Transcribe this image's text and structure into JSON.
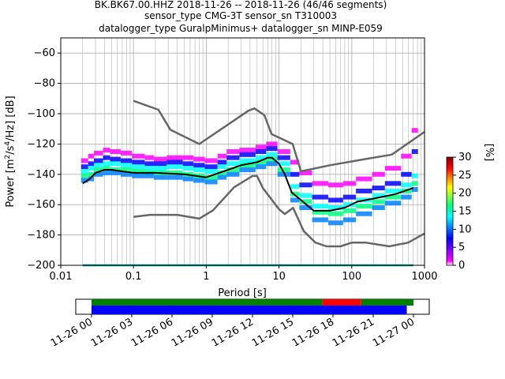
{
  "title": {
    "line1": "BK.BK67.00.HHZ   2018-11-26 -- 2018-11-26  (46/46 segments)",
    "line2": "sensor_type CMG-3T sensor_sn T310003",
    "line3": "datalogger_type GuralpMinimus+ datalogger_sn MINP-E059"
  },
  "chart_data": {
    "type": "heatmap",
    "title": "BK.BK67.00.HHZ   2018-11-26 -- 2018-11-26  (46/46 segments)",
    "xlabel": "Period [s]",
    "ylabel": "Power [m²/s⁴/Hz] [dB]",
    "ylabel_text": "Power [m",
    "ylabel_sup1": "2",
    "ylabel_mid": "/s",
    "ylabel_sup2": "4",
    "ylabel_end": "/Hz] [dB]",
    "x_scale": "log",
    "xlim": [
      0.01,
      1000
    ],
    "ylim": [
      -200,
      -50
    ],
    "x_ticks": [
      0.01,
      0.1,
      1,
      10,
      100,
      1000
    ],
    "x_tick_labels": [
      "0.01",
      "0.1",
      "1",
      "10",
      "100",
      "1000"
    ],
    "y_ticks": [
      -200,
      -180,
      -160,
      -140,
      -120,
      -100,
      -80,
      -60
    ],
    "y_tick_labels": [
      "−200",
      "−180",
      "−160",
      "−140",
      "−120",
      "−100",
      "−80",
      "−60"
    ],
    "grid": true,
    "colorbar": {
      "label": "[%]",
      "range": [
        0,
        30
      ],
      "ticks": [
        0,
        5,
        10,
        15,
        20,
        25,
        30
      ],
      "colormap": [
        "#ffffff",
        "#ff00ff",
        "#0000ff",
        "#00ffff",
        "#00ff00",
        "#ffff00",
        "#ff0000",
        "#800000"
      ]
    },
    "series": [
      {
        "name": "mean",
        "color": "#000000",
        "x": [
          0.02,
          0.025,
          0.03,
          0.04,
          0.05,
          0.07,
          0.1,
          0.2,
          0.5,
          1,
          2,
          3,
          5,
          7,
          8,
          10,
          12,
          15,
          20,
          30,
          50,
          80,
          120,
          200,
          400,
          700
        ],
        "y": [
          -146,
          -143,
          -139,
          -137,
          -137,
          -138,
          -139,
          -139,
          -140,
          -142,
          -137,
          -134,
          -132,
          -129,
          -129,
          -133,
          -140,
          -152,
          -157,
          -164,
          -164,
          -162,
          -158,
          -156,
          -153,
          -149
        ]
      },
      {
        "name": "noise model high",
        "color": "#666666",
        "x": [
          0.1,
          0.22,
          0.32,
          0.8,
          3.8,
          4.6,
          6.3,
          7.9,
          15.4,
          20
        ],
        "y": [
          -91.5,
          -97.4,
          -110.5,
          -120,
          -98,
          -96.5,
          -101,
          -113.5,
          -120,
          -138
        ]
      },
      {
        "name": "noise model high long period",
        "color": "#666666",
        "x": [
          20,
          50,
          150,
          354.8,
          1000
        ],
        "y": [
          -138,
          -134,
          -130,
          -127,
          -112
        ]
      },
      {
        "name": "noise model low",
        "color": "#666666",
        "x": [
          0.1,
          0.17,
          0.4,
          0.8,
          1.24,
          2.4,
          4.3,
          5,
          6,
          10,
          12,
          15.6,
          21.9,
          31.6,
          45,
          70,
          101,
          154,
          328,
          600,
          1000
        ],
        "y": [
          -168,
          -166.7,
          -166.7,
          -169.2,
          -163.7,
          -148.6,
          -141.1,
          -141.1,
          -149,
          -163,
          -166.2,
          -162.1,
          -177.5,
          -185,
          -187.5,
          -187.5,
          -185,
          -185,
          -187.5,
          -185,
          -179
        ]
      },
      {
        "name": "floor",
        "color": "#00a0a0",
        "x": [
          0.02,
          700
        ],
        "y": [
          -200,
          -200
        ]
      }
    ],
    "psd_cells": [
      {
        "x": 0.02,
        "y": [
          -131,
          -135,
          -138,
          -141,
          -144
        ]
      },
      {
        "x": 0.025,
        "y": [
          -128,
          -133,
          -136,
          -140,
          -143
        ]
      },
      {
        "x": 0.03,
        "y": [
          -126,
          -131,
          -134,
          -137,
          -140
        ]
      },
      {
        "x": 0.04,
        "y": [
          -124,
          -129,
          -133,
          -136,
          -139
        ]
      },
      {
        "x": 0.05,
        "y": [
          -125,
          -130,
          -133,
          -137,
          -139
        ]
      },
      {
        "x": 0.07,
        "y": [
          -126,
          -131,
          -134,
          -137,
          -140
        ]
      },
      {
        "x": 0.1,
        "y": [
          -128,
          -132,
          -135,
          -138,
          -141
        ]
      },
      {
        "x": 0.15,
        "y": [
          -129,
          -133,
          -136,
          -139,
          -141
        ]
      },
      {
        "x": 0.2,
        "y": [
          -130,
          -133,
          -136,
          -139,
          -142
        ]
      },
      {
        "x": 0.3,
        "y": [
          -129,
          -132,
          -135,
          -139,
          -142
        ]
      },
      {
        "x": 0.5,
        "y": [
          -129,
          -133,
          -136,
          -140,
          -143
        ]
      },
      {
        "x": 0.7,
        "y": [
          -130,
          -134,
          -137,
          -141,
          -144
        ]
      },
      {
        "x": 1,
        "y": [
          -131,
          -135,
          -138,
          -142,
          -145
        ]
      },
      {
        "x": 1.5,
        "y": [
          -128,
          -132,
          -135,
          -139,
          -142
        ]
      },
      {
        "x": 2,
        "y": [
          -125,
          -129,
          -133,
          -137,
          -140
        ]
      },
      {
        "x": 3,
        "y": [
          -124,
          -127,
          -131,
          -134,
          -137
        ]
      },
      {
        "x": 5,
        "y": [
          -122,
          -125,
          -129,
          -132,
          -135
        ]
      },
      {
        "x": 7,
        "y": [
          -120,
          -123,
          -127,
          -130,
          -133
        ]
      },
      {
        "x": 10,
        "y": [
          -125,
          -129,
          -133,
          -137,
          -140
        ]
      },
      {
        "x": 15,
        "y": [
          -132,
          -140,
          -148,
          -153,
          -157
        ]
      },
      {
        "x": 20,
        "y": [
          -139,
          -147,
          -154,
          -158,
          -162
        ]
      },
      {
        "x": 30,
        "y": [
          -146,
          -155,
          -161,
          -165,
          -170
        ]
      },
      {
        "x": 50,
        "y": [
          -147,
          -157,
          -162,
          -166,
          -172
        ]
      },
      {
        "x": 80,
        "y": [
          -146,
          -155,
          -160,
          -164,
          -170
        ]
      },
      {
        "x": 120,
        "y": [
          -143,
          -151,
          -157,
          -161,
          -166
        ]
      },
      {
        "x": 200,
        "y": [
          -140,
          -149,
          -154,
          -158,
          -162
        ]
      },
      {
        "x": 300,
        "y": [
          -136,
          -146,
          -151,
          -155,
          -159
        ]
      },
      {
        "x": 500,
        "y": [
          -128,
          -140,
          -147,
          -151,
          -155
        ]
      },
      {
        "x": 700,
        "y": [
          -111,
          -125,
          -141,
          -146,
          -150
        ]
      }
    ],
    "timeline": {
      "tick_labels": [
        "11-26 00",
        "11-26 03",
        "11-26 06",
        "11-26 09",
        "11-26 12",
        "11-26 15",
        "11-26 18",
        "11-26 21",
        "11-27 00"
      ],
      "data_bar": [
        {
          "from_h": 0,
          "to_h": 23.5,
          "color": "#0000ff"
        }
      ],
      "gap_bar": [
        {
          "from_h": 0,
          "to_h": 17.2,
          "color": "#008000"
        },
        {
          "from_h": 17.2,
          "to_h": 20.1,
          "color": "#ff0000"
        },
        {
          "from_h": 20.1,
          "to_h": 24.5,
          "color": "#008000"
        }
      ]
    }
  }
}
